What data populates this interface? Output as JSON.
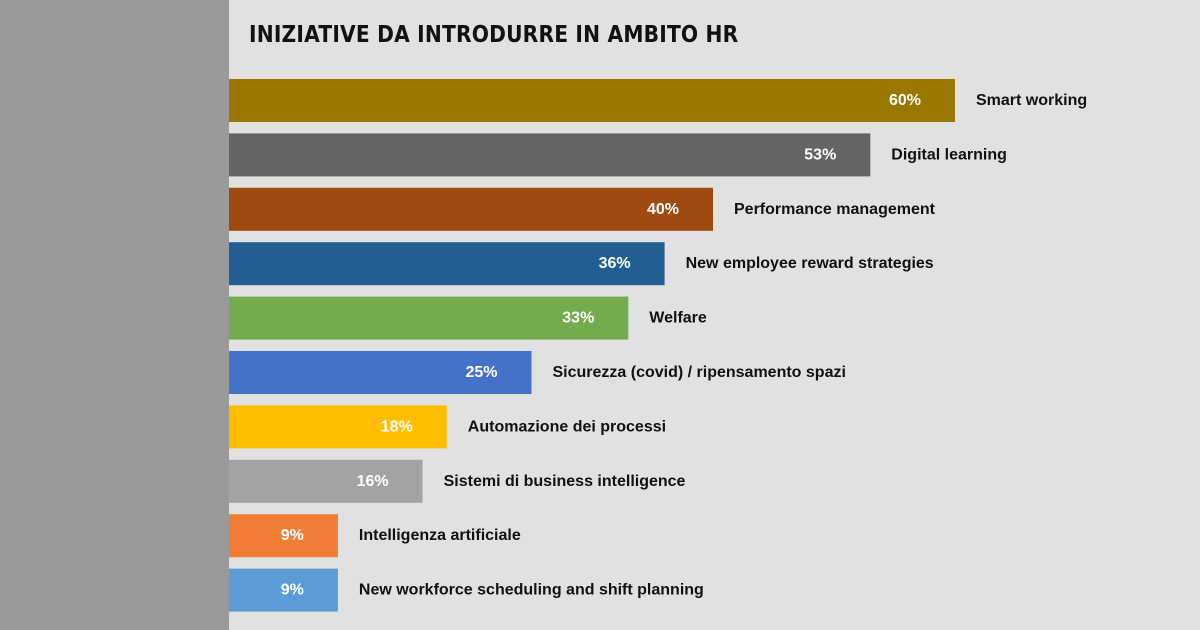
{
  "chart_data": {
    "type": "bar",
    "orientation": "horizontal",
    "title": "INIZIATIVE DA INTRODURRE IN AMBITO HR",
    "xlim": [
      0,
      60
    ],
    "grid": false,
    "categories": [
      "Smart working",
      "Digital learning",
      "Performance management",
      "New employee reward strategies",
      "Welfare",
      "Sicurezza (covid) / ripensamento spazi",
      "Automazione dei processi",
      "Sistemi di business intelligence",
      "Intelligenza artificiale",
      "New workforce scheduling and shift planning"
    ],
    "values": [
      60,
      53,
      40,
      36,
      33,
      25,
      18,
      16,
      9,
      9
    ],
    "value_labels": [
      "60%",
      "53%",
      "40%",
      "36%",
      "33%",
      "25%",
      "18%",
      "16%",
      "9%",
      "9%"
    ],
    "colors": [
      "#9a7700",
      "#646464",
      "#9e4a10",
      "#235e92",
      "#72ac4c",
      "#4472c8",
      "#fdbe00",
      "#a3a3a3",
      "#ef7e34",
      "#5b9cd6"
    ]
  }
}
